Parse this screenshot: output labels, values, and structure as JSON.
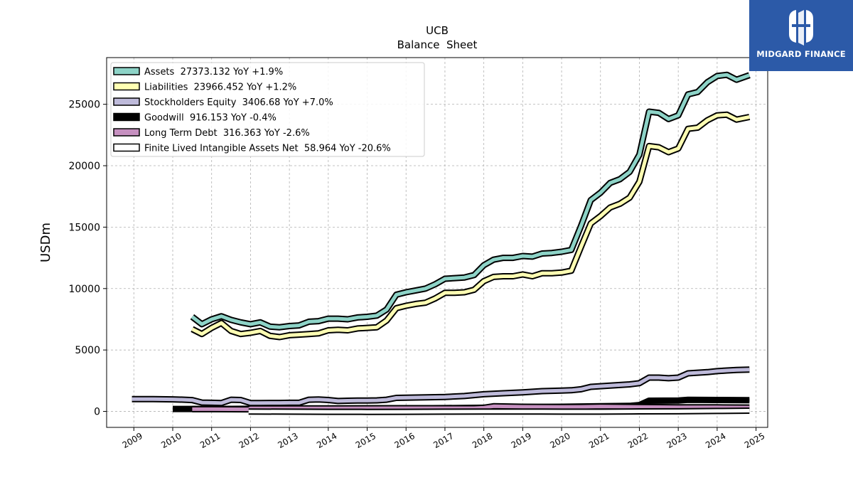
{
  "logo": {
    "text": "MIDGARD FINANCE",
    "background": "#2c5aa8"
  },
  "chart_data": {
    "type": "line",
    "title": "UCB",
    "subtitle": "Balance  Sheet",
    "ylabel": "USDm",
    "xlabel": "",
    "xlim": [
      2008.3,
      2025.3
    ],
    "ylim": [
      -1300,
      28800
    ],
    "grid": true,
    "legend_position": "top-left",
    "x_ticks": [
      2009,
      2010,
      2011,
      2012,
      2013,
      2014,
      2015,
      2016,
      2017,
      2018,
      2019,
      2020,
      2021,
      2022,
      2023,
      2024,
      2025
    ],
    "y_ticks": [
      0,
      5000,
      10000,
      15000,
      20000,
      25000
    ],
    "series": [
      {
        "name": "Assets  27373.132 YoY +1.9%",
        "color": "#8dd3c7",
        "x": [
          2010.5,
          2010.75,
          2011.0,
          2011.25,
          2011.5,
          2011.75,
          2012.0,
          2012.25,
          2012.5,
          2012.75,
          2013.0,
          2013.25,
          2013.5,
          2013.75,
          2014.0,
          2014.25,
          2014.5,
          2014.75,
          2015.0,
          2015.25,
          2015.5,
          2015.75,
          2016.0,
          2016.25,
          2016.5,
          2016.75,
          2017.0,
          2017.25,
          2017.5,
          2017.75,
          2018.0,
          2018.25,
          2018.5,
          2018.75,
          2019.0,
          2019.25,
          2019.5,
          2019.75,
          2020.0,
          2020.25,
          2020.5,
          2020.75,
          2021.0,
          2021.25,
          2021.5,
          2021.75,
          2022.0,
          2022.25,
          2022.5,
          2022.75,
          2023.0,
          2023.25,
          2023.5,
          2023.75,
          2024.0,
          2024.25,
          2024.5,
          2024.83
        ],
        "y": [
          7700,
          7100,
          7500,
          7750,
          7450,
          7250,
          7100,
          7250,
          6900,
          6850,
          6950,
          7000,
          7300,
          7350,
          7550,
          7550,
          7500,
          7650,
          7700,
          7800,
          8300,
          9500,
          9700,
          9850,
          10000,
          10350,
          10800,
          10850,
          10900,
          11100,
          11900,
          12350,
          12500,
          12500,
          12650,
          12600,
          12850,
          12900,
          13000,
          13150,
          15100,
          17200,
          17800,
          18600,
          18900,
          19500,
          20900,
          24400,
          24300,
          23800,
          24100,
          25800,
          26000,
          26800,
          27300,
          27400,
          27000,
          27373
        ]
      },
      {
        "name": "Liabilities  23966.452 YoY +1.2%",
        "color": "#ffffb3",
        "x": [
          2010.5,
          2010.75,
          2011.0,
          2011.25,
          2011.5,
          2011.75,
          2012.0,
          2012.25,
          2012.5,
          2012.75,
          2013.0,
          2013.25,
          2013.5,
          2013.75,
          2014.0,
          2014.25,
          2014.5,
          2014.75,
          2015.0,
          2015.25,
          2015.5,
          2015.75,
          2016.0,
          2016.25,
          2016.5,
          2016.75,
          2017.0,
          2017.25,
          2017.5,
          2017.75,
          2018.0,
          2018.25,
          2018.5,
          2018.75,
          2019.0,
          2019.25,
          2019.5,
          2019.75,
          2020.0,
          2020.25,
          2020.5,
          2020.75,
          2021.0,
          2021.25,
          2021.5,
          2021.75,
          2022.0,
          2022.25,
          2022.5,
          2022.75,
          2023.0,
          2023.25,
          2023.5,
          2023.75,
          2024.0,
          2024.25,
          2024.5,
          2024.83
        ],
        "y": [
          6700,
          6300,
          6800,
          7200,
          6550,
          6300,
          6400,
          6550,
          6150,
          6050,
          6200,
          6250,
          6300,
          6350,
          6600,
          6650,
          6600,
          6750,
          6800,
          6850,
          7400,
          8400,
          8600,
          8750,
          8850,
          9200,
          9650,
          9650,
          9700,
          9900,
          10600,
          10950,
          11000,
          11000,
          11150,
          11000,
          11250,
          11250,
          11300,
          11450,
          13400,
          15300,
          15900,
          16600,
          16900,
          17400,
          18700,
          21600,
          21500,
          21100,
          21400,
          23000,
          23100,
          23700,
          24100,
          24150,
          23750,
          23966
        ]
      },
      {
        "name": "Stockholders Equity  3406.68 YoY +7.0%",
        "color": "#bebada",
        "x": [
          2008.95,
          2009.5,
          2010.0,
          2010.25,
          2010.5,
          2010.75,
          2011.0,
          2011.25,
          2011.5,
          2011.75,
          2012.0,
          2012.25,
          2012.5,
          2012.75,
          2013.0,
          2013.25,
          2013.5,
          2013.75,
          2014.0,
          2014.25,
          2014.5,
          2014.75,
          2015.0,
          2015.25,
          2015.5,
          2015.75,
          2016.0,
          2016.5,
          2017.0,
          2017.5,
          2018.0,
          2018.5,
          2019.0,
          2019.5,
          2020.0,
          2020.25,
          2020.5,
          2020.75,
          2021.0,
          2021.25,
          2021.5,
          2021.75,
          2022.0,
          2022.25,
          2022.5,
          2022.75,
          2023.0,
          2023.25,
          2023.5,
          2023.75,
          2024.0,
          2024.25,
          2024.5,
          2024.83
        ],
        "y": [
          1000,
          1000,
          980,
          960,
          920,
          720,
          700,
          680,
          950,
          930,
          680,
          680,
          690,
          690,
          700,
          700,
          950,
          970,
          930,
          850,
          870,
          880,
          890,
          900,
          950,
          1100,
          1120,
          1150,
          1180,
          1250,
          1400,
          1480,
          1550,
          1650,
          1700,
          1720,
          1800,
          2000,
          2050,
          2100,
          2150,
          2200,
          2300,
          2750,
          2750,
          2700,
          2750,
          3100,
          3150,
          3200,
          3280,
          3330,
          3370,
          3407
        ]
      },
      {
        "name": "Goodwill  916.153 YoY -0.4%",
        "color": "#000000",
        "x": [
          2010.0,
          2010.5,
          2011.0,
          2012.0,
          2013.0,
          2014.0,
          2015.0,
          2016.0,
          2017.0,
          2018.0,
          2019.0,
          2020.0,
          2021.0,
          2021.75,
          2022.0,
          2022.25,
          2023.0,
          2023.25,
          2024.0,
          2024.83
        ],
        "y": [
          200,
          200,
          200,
          210,
          220,
          230,
          240,
          250,
          270,
          300,
          330,
          380,
          420,
          450,
          520,
          870,
          880,
          940,
          930,
          916
        ]
      },
      {
        "name": "Long Term Debt  316.363 YoY -2.6%",
        "color": "#c690c0",
        "x": [
          2010.5,
          2011.0,
          2011.95,
          2012.0,
          2014.0,
          2016.0,
          2017.75,
          2018.0,
          2018.25,
          2019.0,
          2020.0,
          2020.5,
          2021.0,
          2022.0,
          2023.0,
          2024.0,
          2024.83
        ],
        "y": [
          180,
          180,
          170,
          250,
          250,
          260,
          260,
          300,
          420,
          380,
          360,
          370,
          400,
          360,
          340,
          330,
          316
        ]
      },
      {
        "name": "Finite Lived Intangible Assets Net  58.964 YoY -20.6%",
        "color": "#ffffff",
        "x": [
          2011.95,
          2013.0,
          2014.0,
          2015.0,
          2016.0,
          2017.0,
          2018.0,
          2019.0,
          2020.0,
          2021.0,
          2022.0,
          2023.0,
          2024.0,
          2024.83
        ],
        "y": [
          -10,
          -20,
          -30,
          -40,
          -30,
          -20,
          -10,
          -10,
          -20,
          -20,
          0,
          10,
          40,
          59
        ]
      }
    ]
  }
}
